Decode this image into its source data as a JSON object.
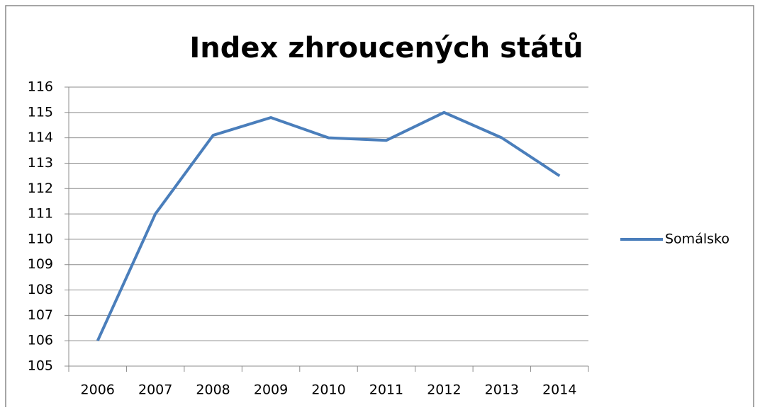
{
  "chart_data": {
    "type": "line",
    "title": "Index zhroucených států",
    "categories": [
      "2006",
      "2007",
      "2008",
      "2009",
      "2010",
      "2011",
      "2012",
      "2013",
      "2014"
    ],
    "series": [
      {
        "name": "Somálsko",
        "color": "#4a7ebb",
        "values": [
          106,
          111,
          114.1,
          114.8,
          114,
          113.9,
          115,
          114,
          112.5
        ]
      }
    ],
    "ylim": [
      105,
      116
    ],
    "yticks": [
      105,
      106,
      107,
      108,
      109,
      110,
      111,
      112,
      113,
      114,
      115,
      116
    ],
    "grid": true,
    "legend": "right"
  }
}
